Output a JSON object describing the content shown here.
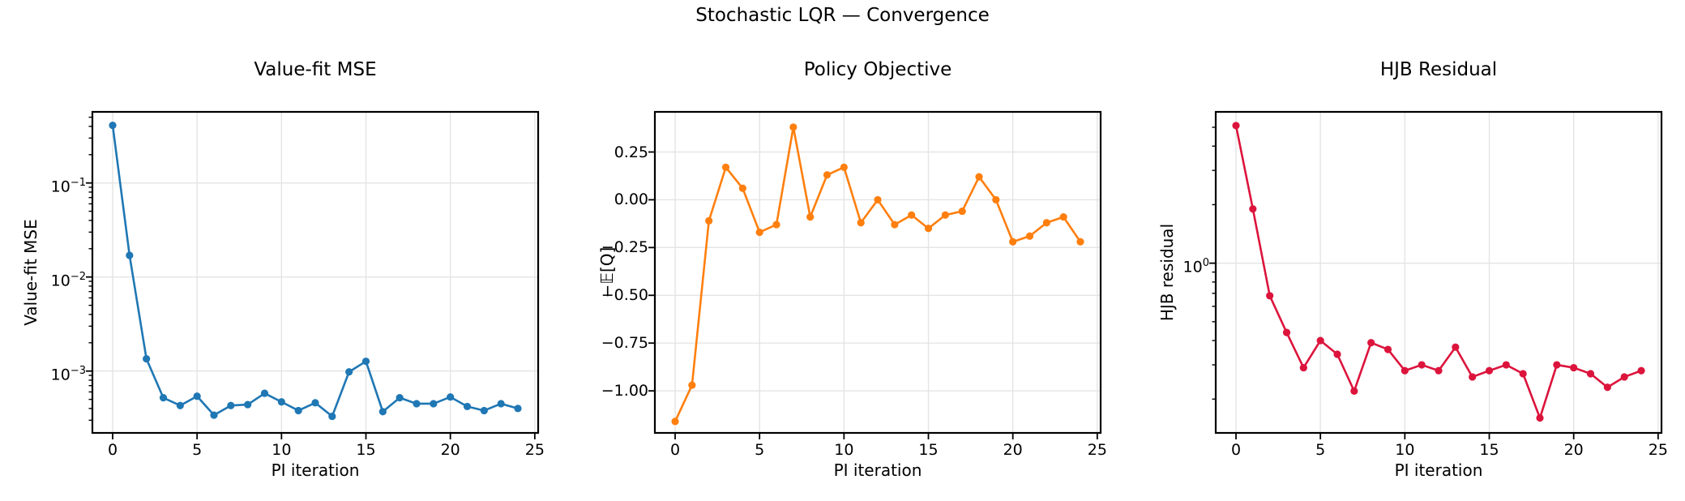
{
  "suptitle": "Stochastic LQR — Convergence",
  "chart_data": [
    {
      "type": "line",
      "title": "Value-fit MSE",
      "xlabel": "PI iteration",
      "ylabel": "Value-fit MSE",
      "yscale": "log",
      "color": "#1f77b4",
      "marker": "circle",
      "grid": true,
      "x": [
        0,
        1,
        2,
        3,
        4,
        5,
        6,
        7,
        8,
        9,
        10,
        11,
        12,
        13,
        14,
        15,
        16,
        17,
        18,
        19,
        20,
        21,
        22,
        23,
        24
      ],
      "y": [
        0.41,
        0.017,
        0.00135,
        0.00052,
        0.00043,
        0.00054,
        0.00034,
        0.00043,
        0.00044,
        0.00058,
        0.00047,
        0.00038,
        0.00046,
        0.00033,
        0.00098,
        0.00127,
        0.00037,
        0.00052,
        0.00045,
        0.00045,
        0.00053,
        0.00042,
        0.00038,
        0.00045,
        0.0004
      ],
      "xlim": [
        -1.2,
        25.2
      ],
      "ylim": [
        0.00022,
        0.57
      ],
      "xticks": [
        0,
        5,
        10,
        15,
        20,
        25
      ],
      "yticks": {
        "type": "log",
        "exponents": [
          -1,
          -2,
          -3
        ]
      }
    },
    {
      "type": "line",
      "title": "Policy Objective",
      "xlabel": "PI iteration",
      "ylabel": "−𝔼[Q]",
      "yscale": "linear",
      "color": "#ff7f0e",
      "marker": "circle",
      "grid": true,
      "x": [
        0,
        1,
        2,
        3,
        4,
        5,
        6,
        7,
        8,
        9,
        10,
        11,
        12,
        13,
        14,
        15,
        16,
        17,
        18,
        19,
        20,
        21,
        22,
        23,
        24
      ],
      "y": [
        -1.16,
        -0.97,
        -0.11,
        0.17,
        0.06,
        -0.17,
        -0.13,
        0.38,
        -0.09,
        0.13,
        0.17,
        -0.12,
        0.0,
        -0.13,
        -0.08,
        -0.15,
        -0.08,
        -0.06,
        0.12,
        0.0,
        -0.22,
        -0.19,
        -0.12,
        -0.09,
        -0.22
      ],
      "xlim": [
        -1.2,
        25.2
      ],
      "ylim": [
        -1.22,
        0.46
      ],
      "xticks": [
        0,
        5,
        10,
        15,
        20,
        25
      ],
      "yticks": {
        "type": "linear",
        "values": [
          0.25,
          0.0,
          -0.25,
          -0.5,
          -0.75,
          -1.0
        ]
      }
    },
    {
      "type": "line",
      "title": "HJB Residual",
      "xlabel": "PI iteration",
      "ylabel": "HJB residual",
      "yscale": "log",
      "color": "#dc143c",
      "marker": "circle",
      "grid": true,
      "x": [
        0,
        1,
        2,
        3,
        4,
        5,
        6,
        7,
        8,
        9,
        10,
        11,
        12,
        13,
        14,
        15,
        16,
        17,
        18,
        19,
        20,
        21,
        22,
        23,
        24
      ],
      "y": [
        5.1,
        1.9,
        0.68,
        0.44,
        0.29,
        0.4,
        0.34,
        0.22,
        0.39,
        0.36,
        0.28,
        0.3,
        0.28,
        0.37,
        0.26,
        0.28,
        0.3,
        0.27,
        0.16,
        0.3,
        0.29,
        0.27,
        0.23,
        0.26,
        0.28
      ],
      "xlim": [
        -1.2,
        25.2
      ],
      "ylim": [
        0.134,
        6.0
      ],
      "xticks": [
        0,
        5,
        10,
        15,
        20,
        25
      ],
      "yticks": {
        "type": "log",
        "exponents": [
          0
        ]
      }
    }
  ]
}
